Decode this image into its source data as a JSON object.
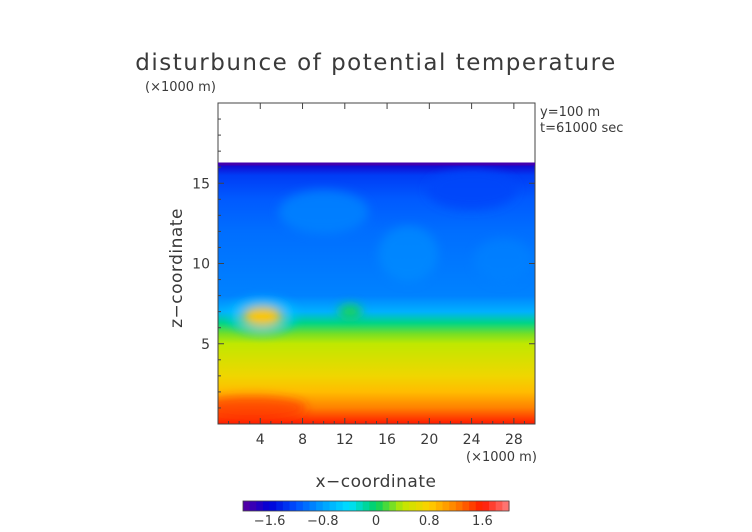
{
  "chart_data": {
    "type": "heatmap",
    "title": "disturbunce of potential temperature",
    "xlabel": "x−coordinate",
    "ylabel": "z−coordinate",
    "x_unit": "(×1000 m)",
    "z_unit": "(×1000 m)",
    "annotations": [
      "y=100 m",
      "t=61000 sec"
    ],
    "xlim": [
      0,
      30
    ],
    "zlim": [
      0,
      20
    ],
    "x_ticks": [
      4,
      8,
      12,
      16,
      20,
      24,
      28
    ],
    "x_tick_labels": [
      "4",
      "8",
      "12",
      "16",
      "20",
      "24",
      "28"
    ],
    "z_ticks": [
      5,
      10,
      15
    ],
    "z_tick_labels": [
      "5",
      "10",
      "15"
    ],
    "colorbar": {
      "range": [
        -2.0,
        2.0
      ],
      "ticks": [
        -1.6,
        -0.8,
        0,
        0.8,
        1.6
      ],
      "tick_labels": [
        "−1.6",
        "−0.8",
        "0",
        "0.8",
        "1.6"
      ],
      "colors": [
        "#5a00a0",
        "#0000d8",
        "#0050ff",
        "#00a0ff",
        "#00e0ff",
        "#00d060",
        "#c0e800",
        "#ffd000",
        "#ff8000",
        "#ff1800",
        "#ff8080"
      ]
    },
    "field": {
      "model_top_km": 16.2,
      "levels_km": [
        0,
        1,
        2,
        3,
        4,
        5,
        5.6,
        6.3,
        7,
        8,
        10,
        12,
        14,
        15.5,
        16.2
      ],
      "values_by_level": [
        1.6,
        1.2,
        0.9,
        0.7,
        0.55,
        0.4,
        0.25,
        -0.1,
        -0.7,
        -0.95,
        -1.0,
        -1.05,
        -1.15,
        -1.3,
        -1.7
      ],
      "warm_blob": {
        "x_km": 4.2,
        "z_km": 6.7,
        "value": 0.85
      }
    }
  }
}
